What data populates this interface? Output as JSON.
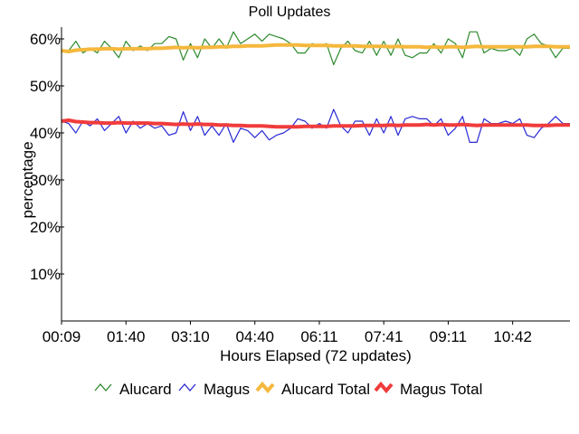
{
  "chart_data": {
    "type": "line",
    "title": "Poll Updates",
    "xlabel": "Hours Elapsed (72 updates)",
    "ylabel": "percentage",
    "ylim": [
      0,
      62.5
    ],
    "yticks": [
      "10%",
      "20%",
      "30%",
      "40%",
      "50%",
      "60%"
    ],
    "ytick_values": [
      10,
      20,
      30,
      40,
      50,
      60
    ],
    "xticks": [
      "00:09",
      "01:40",
      "03:10",
      "04:40",
      "06:11",
      "07:41",
      "09:11",
      "10:42"
    ],
    "xtick_index": [
      0,
      9,
      18,
      27,
      36,
      45,
      54,
      63
    ],
    "grid": false,
    "legend_position": "bottom",
    "series": [
      {
        "name": "Alucard",
        "color": "#2e8b2e",
        "values": [
          57.5,
          57.5,
          59.5,
          57.0,
          58.0,
          57.0,
          59.5,
          58.0,
          56.0,
          59.5,
          57.5,
          58.5,
          57.5,
          59.0,
          59.0,
          60.5,
          60.0,
          55.5,
          59.0,
          56.0,
          60.0,
          58.0,
          60.0,
          58.0,
          61.5,
          59.0,
          60.0,
          61.0,
          59.5,
          61.0,
          60.5,
          60.0,
          59.0,
          57.0,
          57.0,
          59.0,
          58.5,
          59.0,
          54.5,
          58.0,
          59.5,
          57.5,
          57.0,
          59.5,
          56.5,
          59.5,
          56.5,
          60.0,
          56.5,
          56.0,
          57.0,
          57.0,
          59.0,
          57.0,
          60.0,
          59.0,
          56.0,
          61.5,
          61.5,
          57.0,
          58.0,
          57.5,
          57.5,
          58.0,
          56.5,
          60.0,
          61.0,
          59.0,
          58.5,
          56.0,
          58.0,
          58.0
        ]
      },
      {
        "name": "Magus",
        "color": "#2a2ad4",
        "values": [
          42.5,
          42.0,
          40.0,
          42.5,
          41.5,
          43.0,
          40.5,
          42.0,
          43.5,
          40.0,
          42.5,
          41.0,
          42.0,
          41.0,
          41.5,
          39.5,
          40.0,
          44.5,
          40.5,
          43.5,
          39.5,
          41.5,
          39.5,
          42.0,
          38.0,
          41.0,
          40.5,
          39.0,
          40.5,
          38.5,
          39.5,
          40.0,
          41.0,
          43.0,
          42.5,
          41.0,
          42.0,
          41.0,
          45.0,
          41.5,
          40.0,
          42.5,
          42.5,
          39.5,
          43.0,
          40.0,
          43.5,
          39.5,
          43.0,
          43.5,
          43.0,
          43.0,
          41.5,
          43.0,
          39.5,
          41.0,
          43.5,
          38.0,
          38.0,
          43.0,
          42.0,
          42.0,
          42.5,
          42.0,
          43.0,
          39.5,
          39.0,
          41.0,
          42.0,
          43.5,
          42.0,
          42.0
        ]
      },
      {
        "name": "Alucard Total",
        "color": "#f5b83d",
        "values": [
          57.5,
          57.3,
          57.6,
          57.7,
          57.8,
          57.8,
          57.9,
          57.9,
          57.8,
          57.9,
          57.9,
          57.9,
          57.9,
          58.0,
          58.0,
          58.1,
          58.2,
          58.1,
          58.2,
          58.1,
          58.2,
          58.2,
          58.3,
          58.3,
          58.4,
          58.4,
          58.5,
          58.5,
          58.5,
          58.6,
          58.7,
          58.7,
          58.7,
          58.7,
          58.6,
          58.6,
          58.6,
          58.6,
          58.5,
          58.5,
          58.5,
          58.5,
          58.4,
          58.4,
          58.4,
          58.4,
          58.3,
          58.4,
          58.3,
          58.3,
          58.3,
          58.2,
          58.3,
          58.2,
          58.3,
          58.3,
          58.2,
          58.3,
          58.4,
          58.3,
          58.3,
          58.3,
          58.3,
          58.3,
          58.3,
          58.3,
          58.4,
          58.4,
          58.4,
          58.3,
          58.3,
          58.3
        ]
      },
      {
        "name": "Magus Total",
        "color": "#f03c3c",
        "values": [
          42.5,
          42.7,
          42.4,
          42.3,
          42.2,
          42.2,
          42.1,
          42.1,
          42.2,
          42.1,
          42.1,
          42.1,
          42.1,
          42.0,
          42.0,
          41.9,
          41.8,
          41.9,
          41.8,
          41.9,
          41.8,
          41.8,
          41.7,
          41.7,
          41.6,
          41.6,
          41.5,
          41.5,
          41.5,
          41.4,
          41.3,
          41.3,
          41.3,
          41.3,
          41.4,
          41.4,
          41.4,
          41.4,
          41.5,
          41.5,
          41.5,
          41.5,
          41.6,
          41.6,
          41.6,
          41.6,
          41.7,
          41.6,
          41.7,
          41.7,
          41.7,
          41.8,
          41.7,
          41.8,
          41.7,
          41.7,
          41.8,
          41.7,
          41.6,
          41.7,
          41.7,
          41.7,
          41.7,
          41.7,
          41.7,
          41.7,
          41.6,
          41.6,
          41.6,
          41.7,
          41.7,
          41.7
        ]
      }
    ]
  }
}
